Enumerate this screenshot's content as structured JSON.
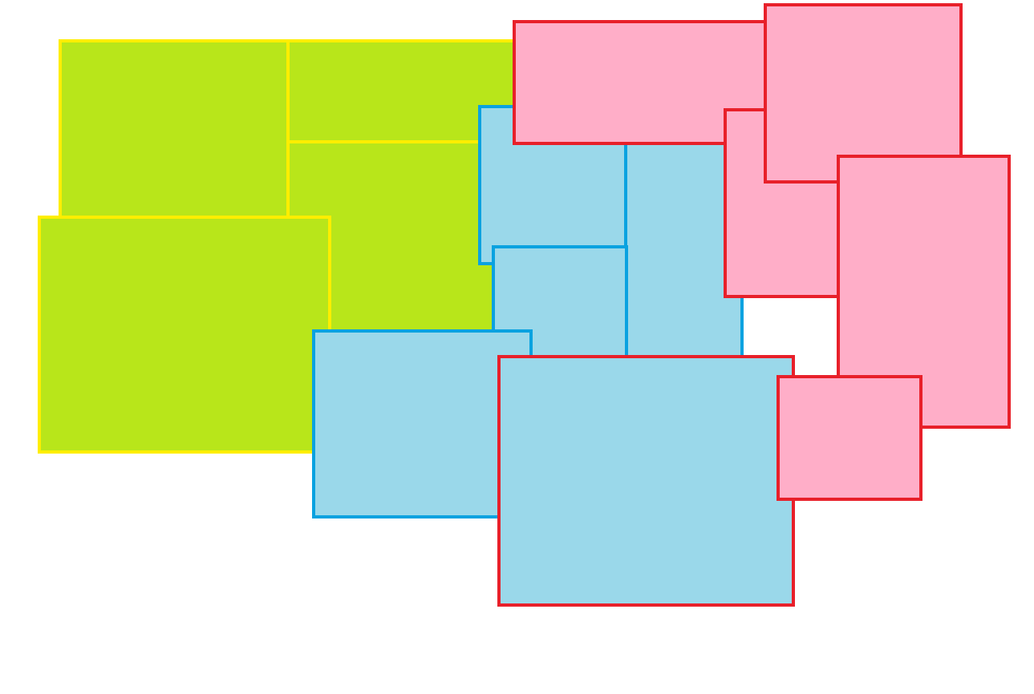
{
  "colors": {
    "green_fill": "#b8e61a",
    "green_border": "#ffee00",
    "blue_fill": "#9ad8ea",
    "blue_border": "#0aa2e0",
    "pink_fill": "#ffaec8",
    "pink_border": "#e8202a",
    "background": "#ffffff"
  },
  "shapes": [
    {
      "name": "green-rect-1",
      "fill": "green_fill",
      "border": "green_border"
    },
    {
      "name": "green-rect-2",
      "fill": "green_fill",
      "border": "green_border"
    },
    {
      "name": "green-rect-3",
      "fill": "green_fill",
      "border": "green_border"
    },
    {
      "name": "green-rect-4",
      "fill": "green_fill",
      "border": "green_border"
    },
    {
      "name": "blue-rect-1",
      "fill": "blue_fill",
      "border": "blue_border"
    },
    {
      "name": "blue-rect-2",
      "fill": "blue_fill",
      "border": "blue_border"
    },
    {
      "name": "blue-rect-3",
      "fill": "blue_fill",
      "border": "blue_border"
    },
    {
      "name": "blue-rect-4",
      "fill": "blue_fill",
      "border": "blue_border"
    },
    {
      "name": "pink-rect-1",
      "fill": "pink_fill",
      "border": "pink_border"
    },
    {
      "name": "pink-rect-2",
      "fill": "pink_fill",
      "border": "pink_border"
    },
    {
      "name": "pink-rect-3",
      "fill": "pink_fill",
      "border": "pink_border"
    },
    {
      "name": "pink-rect-4",
      "fill": "pink_fill",
      "border": "pink_border"
    },
    {
      "name": "red-outlined-blue-rect",
      "fill": "blue_fill",
      "border": "pink_border"
    },
    {
      "name": "pink-rect-5",
      "fill": "pink_fill",
      "border": "pink_border"
    }
  ]
}
